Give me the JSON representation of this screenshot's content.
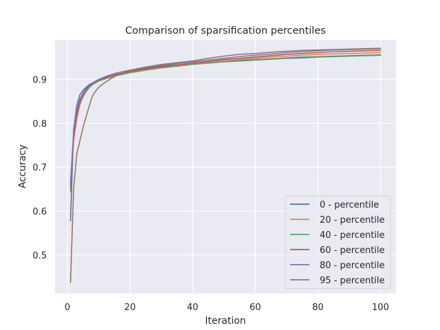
{
  "chart_data": {
    "type": "line",
    "title": "Comparison of sparsification percentiles",
    "xlabel": "Iteration",
    "ylabel": "Accuracy",
    "xlim": [
      -3.95,
      104.95
    ],
    "ylim": [
      0.412,
      0.99
    ],
    "xticks": [
      0,
      20,
      40,
      60,
      80,
      100
    ],
    "yticks": [
      0.5,
      0.6,
      0.7,
      0.8,
      0.9
    ],
    "ytick_labels": [
      "0.5",
      "0.6",
      "0.7",
      "0.8",
      "0.9"
    ],
    "grid": true,
    "legend_position": "lower-right",
    "x": [
      1,
      2,
      3,
      4,
      5,
      6,
      7,
      8,
      9,
      10,
      12,
      14,
      16,
      18,
      20,
      25,
      30,
      35,
      40,
      45,
      50,
      55,
      60,
      65,
      70,
      75,
      80,
      85,
      90,
      95,
      100
    ],
    "series": [
      {
        "name": "0 - percentile",
        "color": "#4c72b0",
        "values": [
          0.578,
          0.785,
          0.84,
          0.865,
          0.875,
          0.882,
          0.888,
          0.892,
          0.896,
          0.899,
          0.904,
          0.908,
          0.912,
          0.915,
          0.918,
          0.925,
          0.93,
          0.933,
          0.935,
          0.938,
          0.94,
          0.942,
          0.944,
          0.946,
          0.948,
          0.949,
          0.951,
          0.952,
          0.953,
          0.954,
          0.955
        ]
      },
      {
        "name": "20 - percentile",
        "color": "#dd8452",
        "values": [
          0.655,
          0.76,
          0.81,
          0.842,
          0.86,
          0.872,
          0.881,
          0.888,
          0.893,
          0.897,
          0.902,
          0.906,
          0.91,
          0.913,
          0.916,
          0.922,
          0.927,
          0.931,
          0.935,
          0.939,
          0.942,
          0.945,
          0.948,
          0.951,
          0.953,
          0.955,
          0.957,
          0.958,
          0.959,
          0.96,
          0.961
        ]
      },
      {
        "name": "40 - percentile",
        "color": "#55a868",
        "values": [
          0.645,
          0.77,
          0.82,
          0.848,
          0.863,
          0.874,
          0.882,
          0.888,
          0.892,
          0.896,
          0.901,
          0.905,
          0.909,
          0.912,
          0.915,
          0.921,
          0.926,
          0.93,
          0.934,
          0.937,
          0.94,
          0.943,
          0.945,
          0.947,
          0.949,
          0.951,
          0.952,
          0.953,
          0.954,
          0.955,
          0.956
        ]
      },
      {
        "name": "60 - percentile",
        "color": "#c44e52",
        "values": [
          0.66,
          0.77,
          0.82,
          0.85,
          0.866,
          0.877,
          0.885,
          0.891,
          0.895,
          0.899,
          0.904,
          0.908,
          0.912,
          0.915,
          0.918,
          0.924,
          0.929,
          0.933,
          0.937,
          0.941,
          0.945,
          0.948,
          0.951,
          0.954,
          0.957,
          0.959,
          0.961,
          0.963,
          0.964,
          0.965,
          0.966
        ]
      },
      {
        "name": "80 - percentile",
        "color": "#8172b3",
        "values": [
          0.665,
          0.78,
          0.83,
          0.855,
          0.869,
          0.879,
          0.886,
          0.891,
          0.896,
          0.9,
          0.906,
          0.911,
          0.915,
          0.918,
          0.921,
          0.927,
          0.932,
          0.936,
          0.94,
          0.944,
          0.948,
          0.952,
          0.955,
          0.958,
          0.961,
          0.963,
          0.965,
          0.967,
          0.968,
          0.969,
          0.97
        ]
      },
      {
        "name": "95 - percentile",
        "color": "#937860",
        "values": [
          0.437,
          0.65,
          0.73,
          0.76,
          0.79,
          0.815,
          0.84,
          0.862,
          0.873,
          0.882,
          0.893,
          0.902,
          0.91,
          0.916,
          0.921,
          0.928,
          0.934,
          0.938,
          0.942,
          0.948,
          0.953,
          0.957,
          0.959,
          0.962,
          0.964,
          0.966,
          0.967,
          0.968,
          0.969,
          0.97,
          0.971
        ]
      }
    ]
  }
}
